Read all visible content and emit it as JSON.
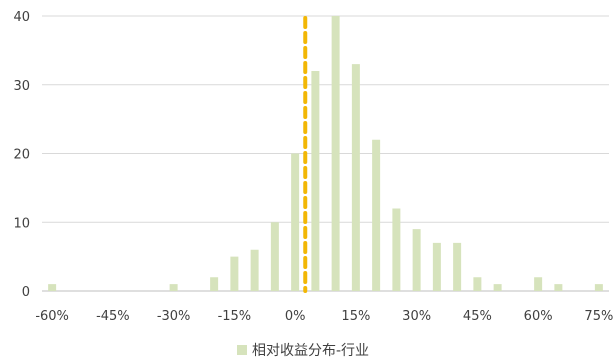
{
  "chart_data": {
    "type": "bar",
    "title": "",
    "xlabel": "",
    "ylabel": "",
    "series": [
      {
        "name": "相对收益分布-行业",
        "x": [
          -60,
          -30,
          -20,
          -15,
          -10,
          -5,
          0,
          5,
          10,
          15,
          20,
          25,
          30,
          35,
          40,
          45,
          50,
          60,
          65,
          75
        ],
        "values": [
          1,
          1,
          2,
          5,
          6,
          10,
          20,
          32,
          40,
          33,
          22,
          12,
          9,
          7,
          7,
          2,
          1,
          2,
          1,
          1
        ]
      }
    ],
    "x_ticks": [
      -60,
      -45,
      -30,
      -15,
      0,
      15,
      30,
      45,
      60,
      75
    ],
    "x_tick_labels": [
      "-60%",
      "-45%",
      "-30%",
      "-15%",
      "0%",
      "15%",
      "30%",
      "45%",
      "60%",
      "75%"
    ],
    "xlim": [
      -62.5,
      77.5
    ],
    "y_ticks": [
      0,
      10,
      20,
      30,
      40
    ],
    "y_tick_labels": [
      "0",
      "10",
      "20",
      "30",
      "40"
    ],
    "ylim": [
      0,
      40
    ],
    "grid": "horizontal",
    "reference_line": {
      "x": 2.5,
      "style": "dashed",
      "color": "#f2b705"
    },
    "legend": {
      "position": "bottom-center"
    },
    "colors": {
      "bar": "#d6e3bc",
      "grid": "#d9d9d9",
      "axis": "#bfbfbf",
      "text": "#404040"
    }
  }
}
